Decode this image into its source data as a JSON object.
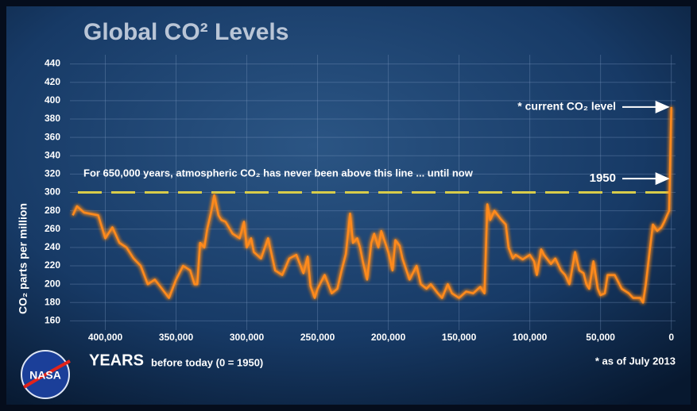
{
  "chart_data": {
    "type": "line",
    "title": "Global CO² Levels",
    "ylabel": "CO₂ parts per million",
    "xlabel_main": "YEARS",
    "xlabel_sub": "before today (0 = 1950)",
    "footnote": "* as of July 2013",
    "logo": "NASA",
    "annotations": {
      "limit_text": "For 650,000 years, atmospheric CO₂ has never been above this line ... until now",
      "limit_value": 300,
      "current_text": "* current CO₂ level",
      "current_value": 393,
      "marker_text": "1950",
      "marker_value": 315
    },
    "xlim": [
      425000,
      -3000
    ],
    "ylim": [
      150,
      450
    ],
    "xticks": [
      {
        "value": 400000,
        "label": "400,000"
      },
      {
        "value": 350000,
        "label": "350,000"
      },
      {
        "value": 300000,
        "label": "300,000"
      },
      {
        "value": 250000,
        "label": "250,000"
      },
      {
        "value": 200000,
        "label": "200,000"
      },
      {
        "value": 150000,
        "label": "150,000"
      },
      {
        "value": 100000,
        "label": "100,000"
      },
      {
        "value": 50000,
        "label": "50,000"
      },
      0
    ],
    "yticks": [
      160,
      180,
      200,
      220,
      240,
      260,
      280,
      300,
      320,
      340,
      360,
      380,
      400,
      420,
      440
    ],
    "grid": true,
    "series": [
      {
        "color": "#ff8a1c",
        "x": [
          423000,
          420000,
          415000,
          405000,
          400000,
          395000,
          390000,
          385000,
          380000,
          375000,
          370000,
          365000,
          360000,
          355000,
          350000,
          345000,
          340000,
          337000,
          335000,
          333000,
          330000,
          328000,
          325000,
          323000,
          320000,
          318000,
          315000,
          310000,
          305000,
          302000,
          300000,
          297000,
          295000,
          290000,
          285000,
          280000,
          275000,
          270000,
          265000,
          260000,
          257000,
          255000,
          252000,
          250000,
          245000,
          240000,
          236000,
          233000,
          230000,
          227000,
          225000,
          222000,
          220000,
          218000,
          215000,
          212000,
          210000,
          207000,
          205000,
          200000,
          197000,
          195000,
          192000,
          190000,
          185000,
          180000,
          177000,
          173000,
          170000,
          165000,
          162000,
          158000,
          155000,
          150000,
          145000,
          140000,
          135000,
          132000,
          130000,
          128000,
          125000,
          120000,
          117000,
          115000,
          112000,
          110000,
          105000,
          100000,
          97000,
          95000,
          92000,
          90000,
          85000,
          82000,
          78000,
          75000,
          72000,
          68000,
          65000,
          62000,
          60000,
          58000,
          55000,
          52000,
          50000,
          47000,
          45000,
          40000,
          35000,
          30000,
          27000,
          22000,
          20000,
          18000,
          15000,
          13000,
          10000,
          7000,
          5000,
          3000,
          1500,
          0
        ],
        "values": [
          275,
          285,
          278,
          275,
          250,
          262,
          245,
          240,
          228,
          220,
          200,
          205,
          195,
          185,
          205,
          220,
          215,
          200,
          200,
          245,
          240,
          260,
          280,
          297,
          275,
          270,
          268,
          255,
          250,
          268,
          240,
          250,
          235,
          228,
          250,
          215,
          210,
          228,
          232,
          212,
          230,
          198,
          185,
          195,
          210,
          190,
          195,
          215,
          233,
          277,
          245,
          250,
          240,
          225,
          205,
          245,
          255,
          240,
          258,
          235,
          215,
          248,
          242,
          228,
          205,
          220,
          200,
          195,
          200,
          190,
          185,
          200,
          190,
          185,
          192,
          190,
          197,
          190,
          287,
          270,
          280,
          270,
          265,
          240,
          228,
          232,
          227,
          232,
          225,
          210,
          238,
          232,
          222,
          228,
          215,
          210,
          200,
          235,
          215,
          212,
          200,
          195,
          225,
          195,
          188,
          190,
          210,
          210,
          195,
          190,
          185,
          185,
          180,
          200,
          240,
          265,
          258,
          262,
          268,
          275,
          280,
          393
        ]
      }
    ]
  }
}
